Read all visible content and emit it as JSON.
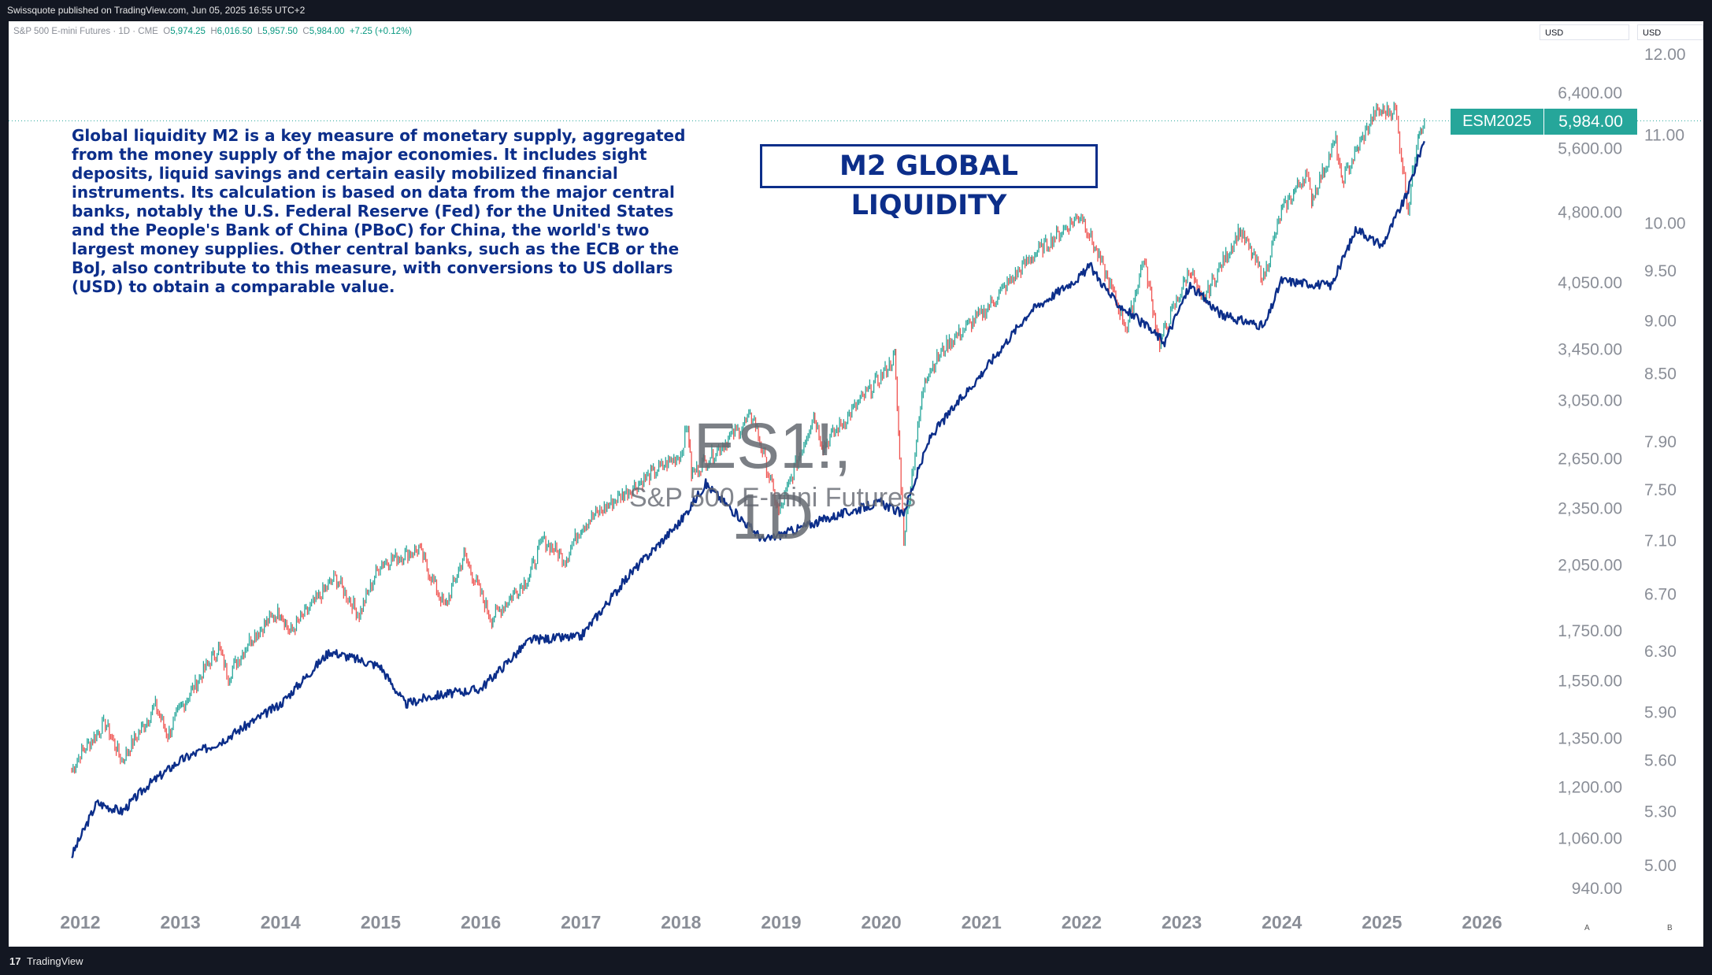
{
  "header": {
    "publisher_text": "Swissquote published on TradingView.com, Jun 05, 2025 16:55 UTC+2"
  },
  "legend": {
    "symbol_text": "S&P 500 E-mini Futures · 1D · CME",
    "o_label": "O",
    "o_value": "5,974.25",
    "h_label": "H",
    "h_value": "6,016.50",
    "l_label": "L",
    "l_value": "5,957.50",
    "c_label": "C",
    "c_value": "5,984.00",
    "change": "+7.25 (+0.12%)"
  },
  "currency": {
    "left": "USD",
    "right": "USD"
  },
  "annotations": {
    "title_box": "M2 GLOBAL LIQUIDITY",
    "description": "Global liquidity M2 is a key measure of monetary supply, aggregated from the money supply of the major economies. It includes sight deposits, liquid savings and certain easily mobilized financial instruments. Its calculation is based on data from the major central banks, notably the U.S. Federal Reserve (Fed) for the United States and the People's Bank of China (PBoC) for China, the world's two largest money supplies. Other central banks, such as the ECB or the BoJ, also contribute to this measure, with conversions to US dollars (USD) to obtain a comparable value."
  },
  "watermark": {
    "symbol": "ES1!, 1D",
    "name": "S&P 500 E-mini Futures"
  },
  "price_tag": {
    "symbol": "ESM2025",
    "value": "5,984.00"
  },
  "scale_buttons": {
    "a": "A",
    "b": "B"
  },
  "footer": {
    "brand": "TradingView"
  },
  "colors": {
    "candle_up": "#26a69a",
    "candle_down": "#ef5350",
    "m2_line": "#0c2e8a",
    "price_tag": "#26a69a"
  },
  "chart_data": {
    "type": "line",
    "log_scale": true,
    "x_tick_labels": [
      "2012",
      "2013",
      "2014",
      "2015",
      "2016",
      "2017",
      "2018",
      "2019",
      "2020",
      "2021",
      "2022",
      "2023",
      "2024",
      "2025",
      "2026"
    ],
    "left_axis_ticks": [
      "6,400.00",
      "5,600.00",
      "4,800.00",
      "4,050.00",
      "3,450.00",
      "3,050.00",
      "2,650.00",
      "2,350.00",
      "2,050.00",
      "1,750.00",
      "1,550.00",
      "1,350.00",
      "1,200.00",
      "1,060.00",
      "940.00"
    ],
    "right_axis_ticks": [
      "12.00",
      "11.00",
      "10.00",
      "9.50",
      "9.00",
      "8.50",
      "7.90",
      "7.50",
      "7.10",
      "6.70",
      "6.30",
      "5.90",
      "5.60",
      "5.30",
      "5.00"
    ],
    "series": [
      {
        "name": "ES1!",
        "axis": "left",
        "style": "candles",
        "points": [
          [
            "2011-12-01",
            1250
          ],
          [
            "2012-01-01",
            1300
          ],
          [
            "2012-04-01",
            1400
          ],
          [
            "2012-06-01",
            1280
          ],
          [
            "2012-10-01",
            1460
          ],
          [
            "2012-11-15",
            1360
          ],
          [
            "2013-01-01",
            1450
          ],
          [
            "2013-05-20",
            1680
          ],
          [
            "2013-06-25",
            1570
          ],
          [
            "2013-09-15",
            1720
          ],
          [
            "2014-01-01",
            1840
          ],
          [
            "2014-02-03",
            1740
          ],
          [
            "2014-07-20",
            1990
          ],
          [
            "2014-10-15",
            1820
          ],
          [
            "2014-12-31",
            2060
          ],
          [
            "2015-05-20",
            2130
          ],
          [
            "2015-08-24",
            1850
          ],
          [
            "2015-11-01",
            2100
          ],
          [
            "2016-02-10",
            1800
          ],
          [
            "2016-06-27",
            2000
          ],
          [
            "2016-08-15",
            2180
          ],
          [
            "2016-11-04",
            2080
          ],
          [
            "2016-12-31",
            2250
          ],
          [
            "2017-06-01",
            2430
          ],
          [
            "2017-12-31",
            2680
          ],
          [
            "2018-01-26",
            2880
          ],
          [
            "2018-02-08",
            2550
          ],
          [
            "2018-09-20",
            2940
          ],
          [
            "2018-12-24",
            2320
          ],
          [
            "2019-04-30",
            2950
          ],
          [
            "2019-06-03",
            2730
          ],
          [
            "2019-12-31",
            3230
          ],
          [
            "2020-02-19",
            3390
          ],
          [
            "2020-03-23",
            2190
          ],
          [
            "2020-06-08",
            3230
          ],
          [
            "2020-08-31",
            3500
          ],
          [
            "2020-12-31",
            3750
          ],
          [
            "2021-06-30",
            4300
          ],
          [
            "2021-12-31",
            4780
          ],
          [
            "2022-06-16",
            3630
          ],
          [
            "2022-08-16",
            4300
          ],
          [
            "2022-10-13",
            3500
          ],
          [
            "2023-02-02",
            4200
          ],
          [
            "2023-03-13",
            3850
          ],
          [
            "2023-07-31",
            4600
          ],
          [
            "2023-10-27",
            4100
          ],
          [
            "2023-12-31",
            4800
          ],
          [
            "2024-03-28",
            5270
          ],
          [
            "2024-04-19",
            4960
          ],
          [
            "2024-07-16",
            5700
          ],
          [
            "2024-08-05",
            5150
          ],
          [
            "2024-12-06",
            6100
          ],
          [
            "2025-02-19",
            6150
          ],
          [
            "2025-03-13",
            5500
          ],
          [
            "2025-04-07",
            4830
          ],
          [
            "2025-05-13",
            5850
          ],
          [
            "2025-06-05",
            5984
          ]
        ]
      },
      {
        "name": "M2 GLOBAL LIQUIDITY",
        "axis": "right",
        "style": "line",
        "points": [
          [
            "2011-12-01",
            5.05
          ],
          [
            "2012-03-01",
            5.35
          ],
          [
            "2012-06-01",
            5.3
          ],
          [
            "2012-09-01",
            5.45
          ],
          [
            "2012-12-31",
            5.6
          ],
          [
            "2013-06-01",
            5.72
          ],
          [
            "2013-12-31",
            5.95
          ],
          [
            "2014-06-30",
            6.3
          ],
          [
            "2014-12-31",
            6.2
          ],
          [
            "2015-04-01",
            5.95
          ],
          [
            "2015-06-30",
            6.0
          ],
          [
            "2015-12-31",
            6.05
          ],
          [
            "2016-06-30",
            6.38
          ],
          [
            "2016-12-31",
            6.4
          ],
          [
            "2017-06-30",
            6.85
          ],
          [
            "2017-12-31",
            7.25
          ],
          [
            "2018-04-01",
            7.55
          ],
          [
            "2018-07-01",
            7.35
          ],
          [
            "2018-10-31",
            7.1
          ],
          [
            "2019-06-30",
            7.28
          ],
          [
            "2019-12-31",
            7.4
          ],
          [
            "2020-03-20",
            7.3
          ],
          [
            "2020-06-30",
            7.95
          ],
          [
            "2020-12-31",
            8.5
          ],
          [
            "2021-06-30",
            9.1
          ],
          [
            "2021-12-31",
            9.45
          ],
          [
            "2022-02-01",
            9.55
          ],
          [
            "2022-04-30",
            9.2
          ],
          [
            "2022-10-31",
            8.8
          ],
          [
            "2023-02-01",
            9.35
          ],
          [
            "2023-05-31",
            9.05
          ],
          [
            "2023-10-31",
            8.95
          ],
          [
            "2023-12-31",
            9.4
          ],
          [
            "2024-06-30",
            9.35
          ],
          [
            "2024-09-30",
            9.95
          ],
          [
            "2024-12-31",
            9.75
          ],
          [
            "2025-03-31",
            10.3
          ],
          [
            "2025-06-05",
            10.95
          ]
        ]
      }
    ]
  }
}
